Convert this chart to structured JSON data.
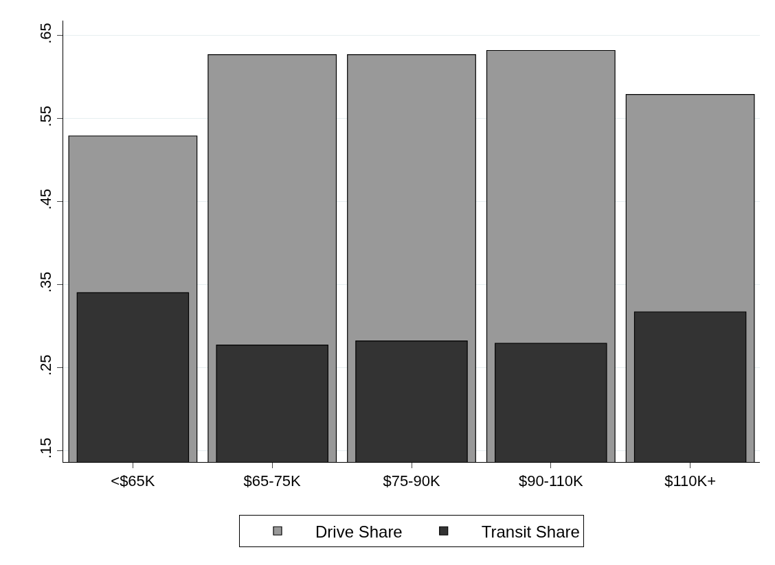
{
  "chart_data": {
    "type": "bar",
    "categories": [
      "<$65K",
      "$65-75K",
      "$75-90K",
      "$90-110K",
      "$110K+"
    ],
    "series": [
      {
        "name": "Drive Share",
        "color": "#999999",
        "values": [
          0.529,
          0.627,
          0.627,
          0.632,
          0.579
        ]
      },
      {
        "name": "Transit Share",
        "color": "#333333",
        "values": [
          0.34,
          0.277,
          0.282,
          0.279,
          0.317
        ]
      }
    ],
    "ylim": [
      0.136,
      0.668
    ],
    "yticks": [
      {
        "value": 0.15,
        "label": ".15"
      },
      {
        "value": 0.25,
        "label": ".25"
      },
      {
        "value": 0.35,
        "label": ".35"
      },
      {
        "value": 0.45,
        "label": ".45"
      },
      {
        "value": 0.55,
        "label": ".55"
      },
      {
        "value": 0.65,
        "label": ".65"
      }
    ],
    "grid": "y",
    "legend": "bottom"
  }
}
